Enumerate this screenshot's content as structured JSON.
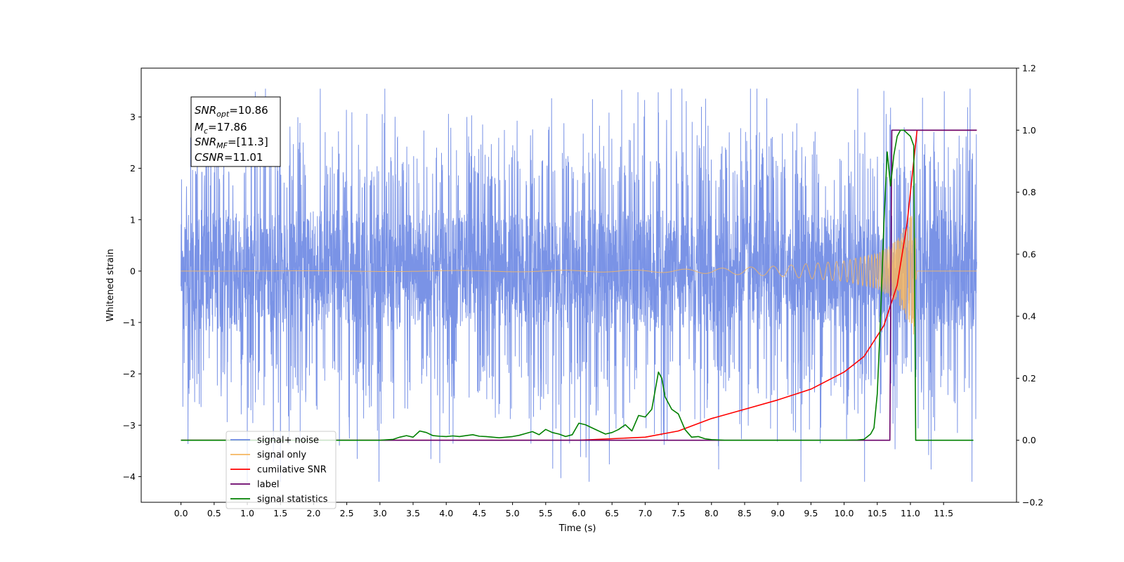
{
  "chart_data": {
    "type": "line",
    "xlabel": "Time (s)",
    "ylabel": "Whitened strain",
    "xlim": [
      -0.6,
      12.6
    ],
    "ylim_left": [
      -4.5,
      3.95
    ],
    "ylim_right": [
      -0.2,
      1.2
    ],
    "x_ticks": [
      "0.0",
      "0.5",
      "1.0",
      "1.5",
      "2.0",
      "2.5",
      "3.0",
      "3.5",
      "4.0",
      "4.5",
      "5.0",
      "5.5",
      "6.0",
      "6.5",
      "7.0",
      "7.5",
      "8.0",
      "8.5",
      "9.0",
      "9.5",
      "10.0",
      "10.5",
      "11.0",
      "11.5"
    ],
    "y_left_ticks": [
      "3",
      "2",
      "1",
      "0",
      "−1",
      "−2",
      "−3",
      "−4"
    ],
    "y_left_tick_values": [
      3,
      2,
      1,
      0,
      -1,
      -2,
      -3,
      -4
    ],
    "y_right_ticks": [
      "1.2",
      "1.0",
      "0.8",
      "0.6",
      "0.4",
      "0.2",
      "0.0",
      "−0.2"
    ],
    "y_right_tick_values": [
      1.2,
      1.0,
      0.8,
      0.6,
      0.4,
      0.2,
      0.0,
      -0.2
    ],
    "annotation": {
      "lines": [
        {
          "main": "SNR",
          "sub": "opt",
          "rest": "=10.86"
        },
        {
          "main": "M",
          "sub": "c",
          "rest": "=17.86"
        },
        {
          "main": "SNR",
          "sub": "MF",
          "rest": "=[11.3]"
        },
        {
          "main": "CSNR",
          "sub": "",
          "rest": "=11.01"
        }
      ]
    },
    "legend_position": "lower-left",
    "legend": [
      {
        "label": "signal+ noise",
        "color": "#6b87e3"
      },
      {
        "label": "signal only",
        "color": "#f5b661"
      },
      {
        "label": "cumilative SNR",
        "color": "#ff0000"
      },
      {
        "label": "label",
        "color": "#6a006a"
      },
      {
        "label": "signal statistics",
        "color": "#008000"
      }
    ],
    "series": [
      {
        "name": "signal+ noise",
        "axis": "left",
        "color": "#6b87e3",
        "x_range": [
          0.0,
          12.0
        ],
        "amplitude_envelope": 2.3,
        "max": 3.55,
        "min": -4.1
      },
      {
        "name": "signal only",
        "axis": "left",
        "color": "#f5b661",
        "x_range": [
          0.0,
          12.0
        ],
        "envelope_x": [
          0.0,
          7.0,
          8.0,
          9.0,
          10.0,
          10.5,
          10.8,
          11.0,
          11.05,
          11.1,
          12.0
        ],
        "envelope_y": [
          0.0,
          0.02,
          0.05,
          0.1,
          0.2,
          0.35,
          0.6,
          1.1,
          1.35,
          0.0,
          0.0
        ]
      },
      {
        "name": "cumilative SNR",
        "axis": "right",
        "color": "#ff0000",
        "x": [
          0.0,
          6.0,
          7.0,
          7.5,
          8.0,
          8.5,
          9.0,
          9.5,
          10.0,
          10.3,
          10.6,
          10.8,
          10.95,
          11.05,
          11.1,
          11.5,
          12.0
        ],
        "y": [
          0.0,
          0.0,
          0.01,
          0.03,
          0.07,
          0.1,
          0.13,
          0.165,
          0.22,
          0.27,
          0.37,
          0.5,
          0.7,
          0.9,
          1.0,
          1.0,
          1.0
        ]
      },
      {
        "name": "label",
        "axis": "right",
        "color": "#6a006a",
        "x": [
          0.0,
          10.69,
          10.72,
          11.1,
          12.0
        ],
        "y": [
          0.0,
          0.0,
          1.0,
          1.0,
          1.0
        ]
      },
      {
        "name": "signal statistics",
        "axis": "right",
        "color": "#008000",
        "x": [
          0.0,
          3.0,
          3.2,
          3.3,
          3.4,
          3.5,
          3.6,
          3.7,
          3.8,
          3.9,
          4.0,
          4.1,
          4.2,
          4.3,
          4.4,
          4.5,
          4.6,
          4.7,
          4.8,
          4.9,
          5.0,
          5.1,
          5.2,
          5.3,
          5.4,
          5.5,
          5.6,
          5.7,
          5.8,
          5.9,
          6.0,
          6.1,
          6.2,
          6.3,
          6.4,
          6.5,
          6.6,
          6.7,
          6.8,
          6.9,
          7.0,
          7.1,
          7.2,
          7.25,
          7.3,
          7.4,
          7.5,
          7.55,
          7.6,
          7.7,
          7.8,
          7.9,
          8.0,
          8.2,
          8.5,
          9.0,
          9.5,
          10.0,
          10.2,
          10.3,
          10.4,
          10.45,
          10.5,
          10.55,
          10.6,
          10.65,
          10.7,
          10.75,
          10.8,
          10.85,
          10.9,
          10.95,
          11.0,
          11.05,
          11.08,
          11.12,
          11.5,
          11.95
        ],
        "y": [
          0.0,
          0.0,
          0.003,
          0.01,
          0.015,
          0.01,
          0.03,
          0.025,
          0.015,
          0.013,
          0.012,
          0.014,
          0.012,
          0.015,
          0.018,
          0.013,
          0.012,
          0.01,
          0.008,
          0.01,
          0.012,
          0.016,
          0.022,
          0.028,
          0.018,
          0.035,
          0.025,
          0.02,
          0.012,
          0.018,
          0.055,
          0.05,
          0.04,
          0.03,
          0.02,
          0.025,
          0.035,
          0.05,
          0.03,
          0.08,
          0.075,
          0.1,
          0.22,
          0.2,
          0.14,
          0.1,
          0.085,
          0.06,
          0.035,
          0.01,
          0.012,
          0.005,
          0.002,
          0.0,
          0.0,
          0.0,
          0.0,
          0.0,
          0.001,
          0.003,
          0.02,
          0.04,
          0.15,
          0.4,
          0.7,
          0.93,
          0.82,
          0.92,
          0.98,
          1.0,
          1.0,
          0.99,
          0.98,
          0.95,
          0.0,
          0.0,
          0.0,
          0.0
        ]
      }
    ]
  }
}
